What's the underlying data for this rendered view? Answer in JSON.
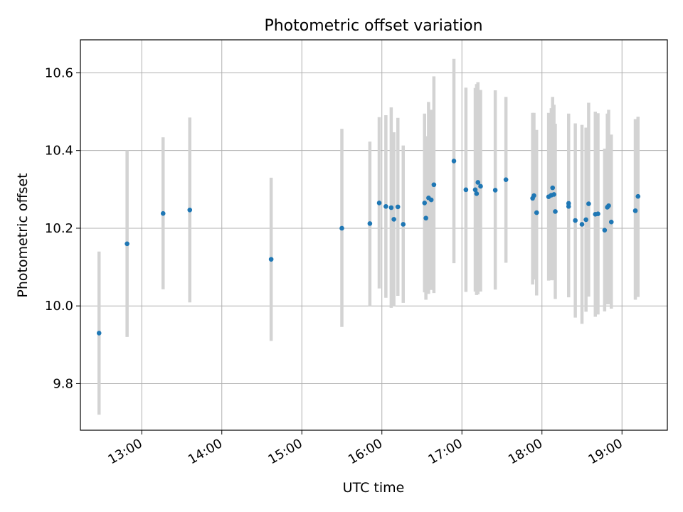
{
  "chart_data": {
    "type": "scatter",
    "title": "Photometric offset variation",
    "xlabel": "UTC time",
    "ylabel": "Photometric offset",
    "x_unit": "UTC time (HH:MM)",
    "xlim": [
      "12:14",
      "19:34"
    ],
    "ylim": [
      9.68,
      10.685
    ],
    "x_ticks": [
      "13:00",
      "14:00",
      "15:00",
      "16:00",
      "17:00",
      "18:00",
      "19:00"
    ],
    "y_ticks": [
      9.8,
      10.0,
      10.2,
      10.4,
      10.6
    ],
    "y_tick_labels": [
      "9.8",
      "10.0",
      "10.2",
      "10.4",
      "10.6"
    ],
    "grid": true,
    "colors": {
      "point": "#1f77b4",
      "errorbar": "#d3d3d3",
      "grid": "#b0b0b0",
      "axes": "#000000"
    },
    "series": [
      {
        "points": [
          {
            "x": "12:28",
            "y": 9.93,
            "lo": 9.72,
            "hi": 10.14
          },
          {
            "x": "12:49",
            "y": 10.16,
            "lo": 9.92,
            "hi": 10.4
          },
          {
            "x": "13:16",
            "y": 10.238,
            "lo": 10.043,
            "hi": 10.434
          },
          {
            "x": "13:36",
            "y": 10.247,
            "lo": 10.009,
            "hi": 10.485
          },
          {
            "x": "14:37",
            "y": 10.12,
            "lo": 9.91,
            "hi": 10.33
          },
          {
            "x": "15:30",
            "y": 10.2,
            "lo": 9.946,
            "hi": 10.456
          },
          {
            "x": "15:51",
            "y": 10.212,
            "lo": 10.0,
            "hi": 10.423
          },
          {
            "x": "15:58",
            "y": 10.265,
            "lo": 10.045,
            "hi": 10.486
          },
          {
            "x": "16:03",
            "y": 10.256,
            "lo": 10.021,
            "hi": 10.491
          },
          {
            "x": "16:07",
            "y": 10.253,
            "lo": 9.995,
            "hi": 10.511
          },
          {
            "x": "16:09",
            "y": 10.223,
            "lo": 9.999,
            "hi": 10.447
          },
          {
            "x": "16:12",
            "y": 10.255,
            "lo": 10.026,
            "hi": 10.484
          },
          {
            "x": "16:16",
            "y": 10.21,
            "lo": 10.008,
            "hi": 10.413
          },
          {
            "x": "16:32",
            "y": 10.265,
            "lo": 10.035,
            "hi": 10.495
          },
          {
            "x": "16:33",
            "y": 10.226,
            "lo": 10.016,
            "hi": 10.437
          },
          {
            "x": "16:35",
            "y": 10.278,
            "lo": 10.031,
            "hi": 10.525
          },
          {
            "x": "16:37",
            "y": 10.273,
            "lo": 10.041,
            "hi": 10.505
          },
          {
            "x": "16:39",
            "y": 10.312,
            "lo": 10.033,
            "hi": 10.591
          },
          {
            "x": "16:54",
            "y": 10.373,
            "lo": 10.11,
            "hi": 10.636
          },
          {
            "x": "17:03",
            "y": 10.299,
            "lo": 10.036,
            "hi": 10.562
          },
          {
            "x": "17:10",
            "y": 10.299,
            "lo": 10.037,
            "hi": 10.561
          },
          {
            "x": "17:11",
            "y": 10.289,
            "lo": 10.028,
            "hi": 10.571
          },
          {
            "x": "17:12",
            "y": 10.318,
            "lo": 10.03,
            "hi": 10.576
          },
          {
            "x": "17:14",
            "y": 10.308,
            "lo": 10.037,
            "hi": 10.556
          },
          {
            "x": "17:25",
            "y": 10.298,
            "lo": 10.042,
            "hi": 10.555
          },
          {
            "x": "17:33",
            "y": 10.325,
            "lo": 10.111,
            "hi": 10.538
          },
          {
            "x": "17:53",
            "y": 10.277,
            "lo": 10.055,
            "hi": 10.497
          },
          {
            "x": "17:54",
            "y": 10.284,
            "lo": 10.068,
            "hi": 10.497
          },
          {
            "x": "17:56",
            "y": 10.24,
            "lo": 10.027,
            "hi": 10.453
          },
          {
            "x": "18:05",
            "y": 10.281,
            "lo": 10.065,
            "hi": 10.497
          },
          {
            "x": "18:07",
            "y": 10.285,
            "lo": 10.066,
            "hi": 10.509
          },
          {
            "x": "18:08",
            "y": 10.304,
            "lo": 10.069,
            "hi": 10.538
          },
          {
            "x": "18:09",
            "y": 10.287,
            "lo": 10.066,
            "hi": 10.518
          },
          {
            "x": "18:10",
            "y": 10.243,
            "lo": 10.018,
            "hi": 10.469
          },
          {
            "x": "18:20",
            "y": 10.264,
            "lo": 10.032,
            "hi": 10.495
          },
          {
            "x": "18:20",
            "y": 10.256,
            "lo": 10.022,
            "hi": 10.491
          },
          {
            "x": "18:25",
            "y": 10.22,
            "lo": 9.97,
            "hi": 10.47
          },
          {
            "x": "18:30",
            "y": 10.21,
            "lo": 9.954,
            "hi": 10.466
          },
          {
            "x": "18:33",
            "y": 10.222,
            "lo": 9.985,
            "hi": 10.459
          },
          {
            "x": "18:35",
            "y": 10.263,
            "lo": 10.024,
            "hi": 10.523
          },
          {
            "x": "18:40",
            "y": 10.236,
            "lo": 9.972,
            "hi": 10.5
          },
          {
            "x": "18:42",
            "y": 10.237,
            "lo": 9.978,
            "hi": 10.496
          },
          {
            "x": "18:47",
            "y": 10.195,
            "lo": 9.986,
            "hi": 10.405
          },
          {
            "x": "18:49",
            "y": 10.254,
            "lo": 10.004,
            "hi": 10.495
          },
          {
            "x": "18:50",
            "y": 10.258,
            "lo": 10.004,
            "hi": 10.505
          },
          {
            "x": "18:52",
            "y": 10.216,
            "lo": 9.993,
            "hi": 10.441
          },
          {
            "x": "19:10",
            "y": 10.245,
            "lo": 10.016,
            "hi": 10.481
          },
          {
            "x": "19:12",
            "y": 10.282,
            "lo": 10.023,
            "hi": 10.487
          }
        ]
      }
    ]
  }
}
